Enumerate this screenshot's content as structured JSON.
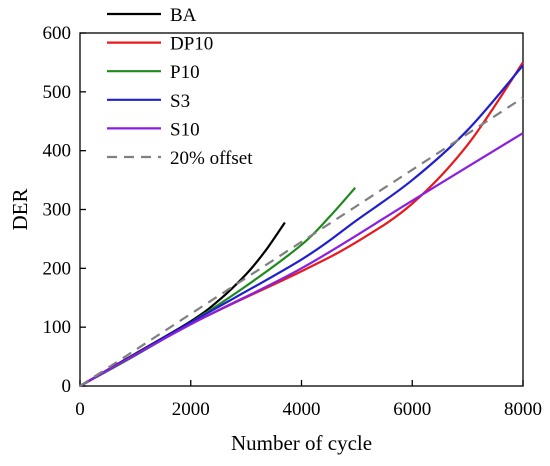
{
  "chart_data": {
    "type": "line",
    "xlabel": "Number of cycle",
    "ylabel": "DER",
    "xlim": [
      0,
      8000
    ],
    "ylim": [
      0,
      600
    ],
    "xticks": [
      0,
      2000,
      4000,
      6000,
      8000
    ],
    "yticks": [
      0,
      100,
      200,
      300,
      400,
      500,
      600
    ],
    "grid": false,
    "legend_position": "top-left",
    "series": [
      {
        "name": "BA",
        "color": "#000000",
        "dash": "solid",
        "x": [
          0,
          1000,
          2000,
          2500,
          3000,
          3350,
          3700
        ],
        "y": [
          0,
          55,
          110,
          145,
          190,
          230,
          278
        ]
      },
      {
        "name": "DP10",
        "color": "#e8191d",
        "dash": "solid",
        "x": [
          0,
          2000,
          4000,
          5000,
          6000,
          7000,
          8000
        ],
        "y": [
          0,
          105,
          195,
          245,
          310,
          410,
          550
        ]
      },
      {
        "name": "P10",
        "color": "#1e8a1e",
        "dash": "solid",
        "x": [
          0,
          1000,
          2000,
          3000,
          4000,
          4500,
          4970
        ],
        "y": [
          0,
          52,
          108,
          170,
          240,
          287,
          337
        ]
      },
      {
        "name": "S3",
        "color": "#1f1fcf",
        "dash": "solid",
        "x": [
          0,
          2000,
          4000,
          5000,
          6000,
          7000,
          8000
        ],
        "y": [
          0,
          108,
          215,
          282,
          350,
          435,
          545
        ]
      },
      {
        "name": "S10",
        "color": "#8a1fe0",
        "dash": "solid",
        "x": [
          0,
          2000,
          4000,
          6000,
          8000
        ],
        "y": [
          0,
          105,
          200,
          315,
          430
        ]
      },
      {
        "name": "20% offset",
        "color": "#808080",
        "dash": "dashed",
        "x": [
          0,
          8000
        ],
        "y": [
          0,
          490
        ]
      }
    ]
  }
}
